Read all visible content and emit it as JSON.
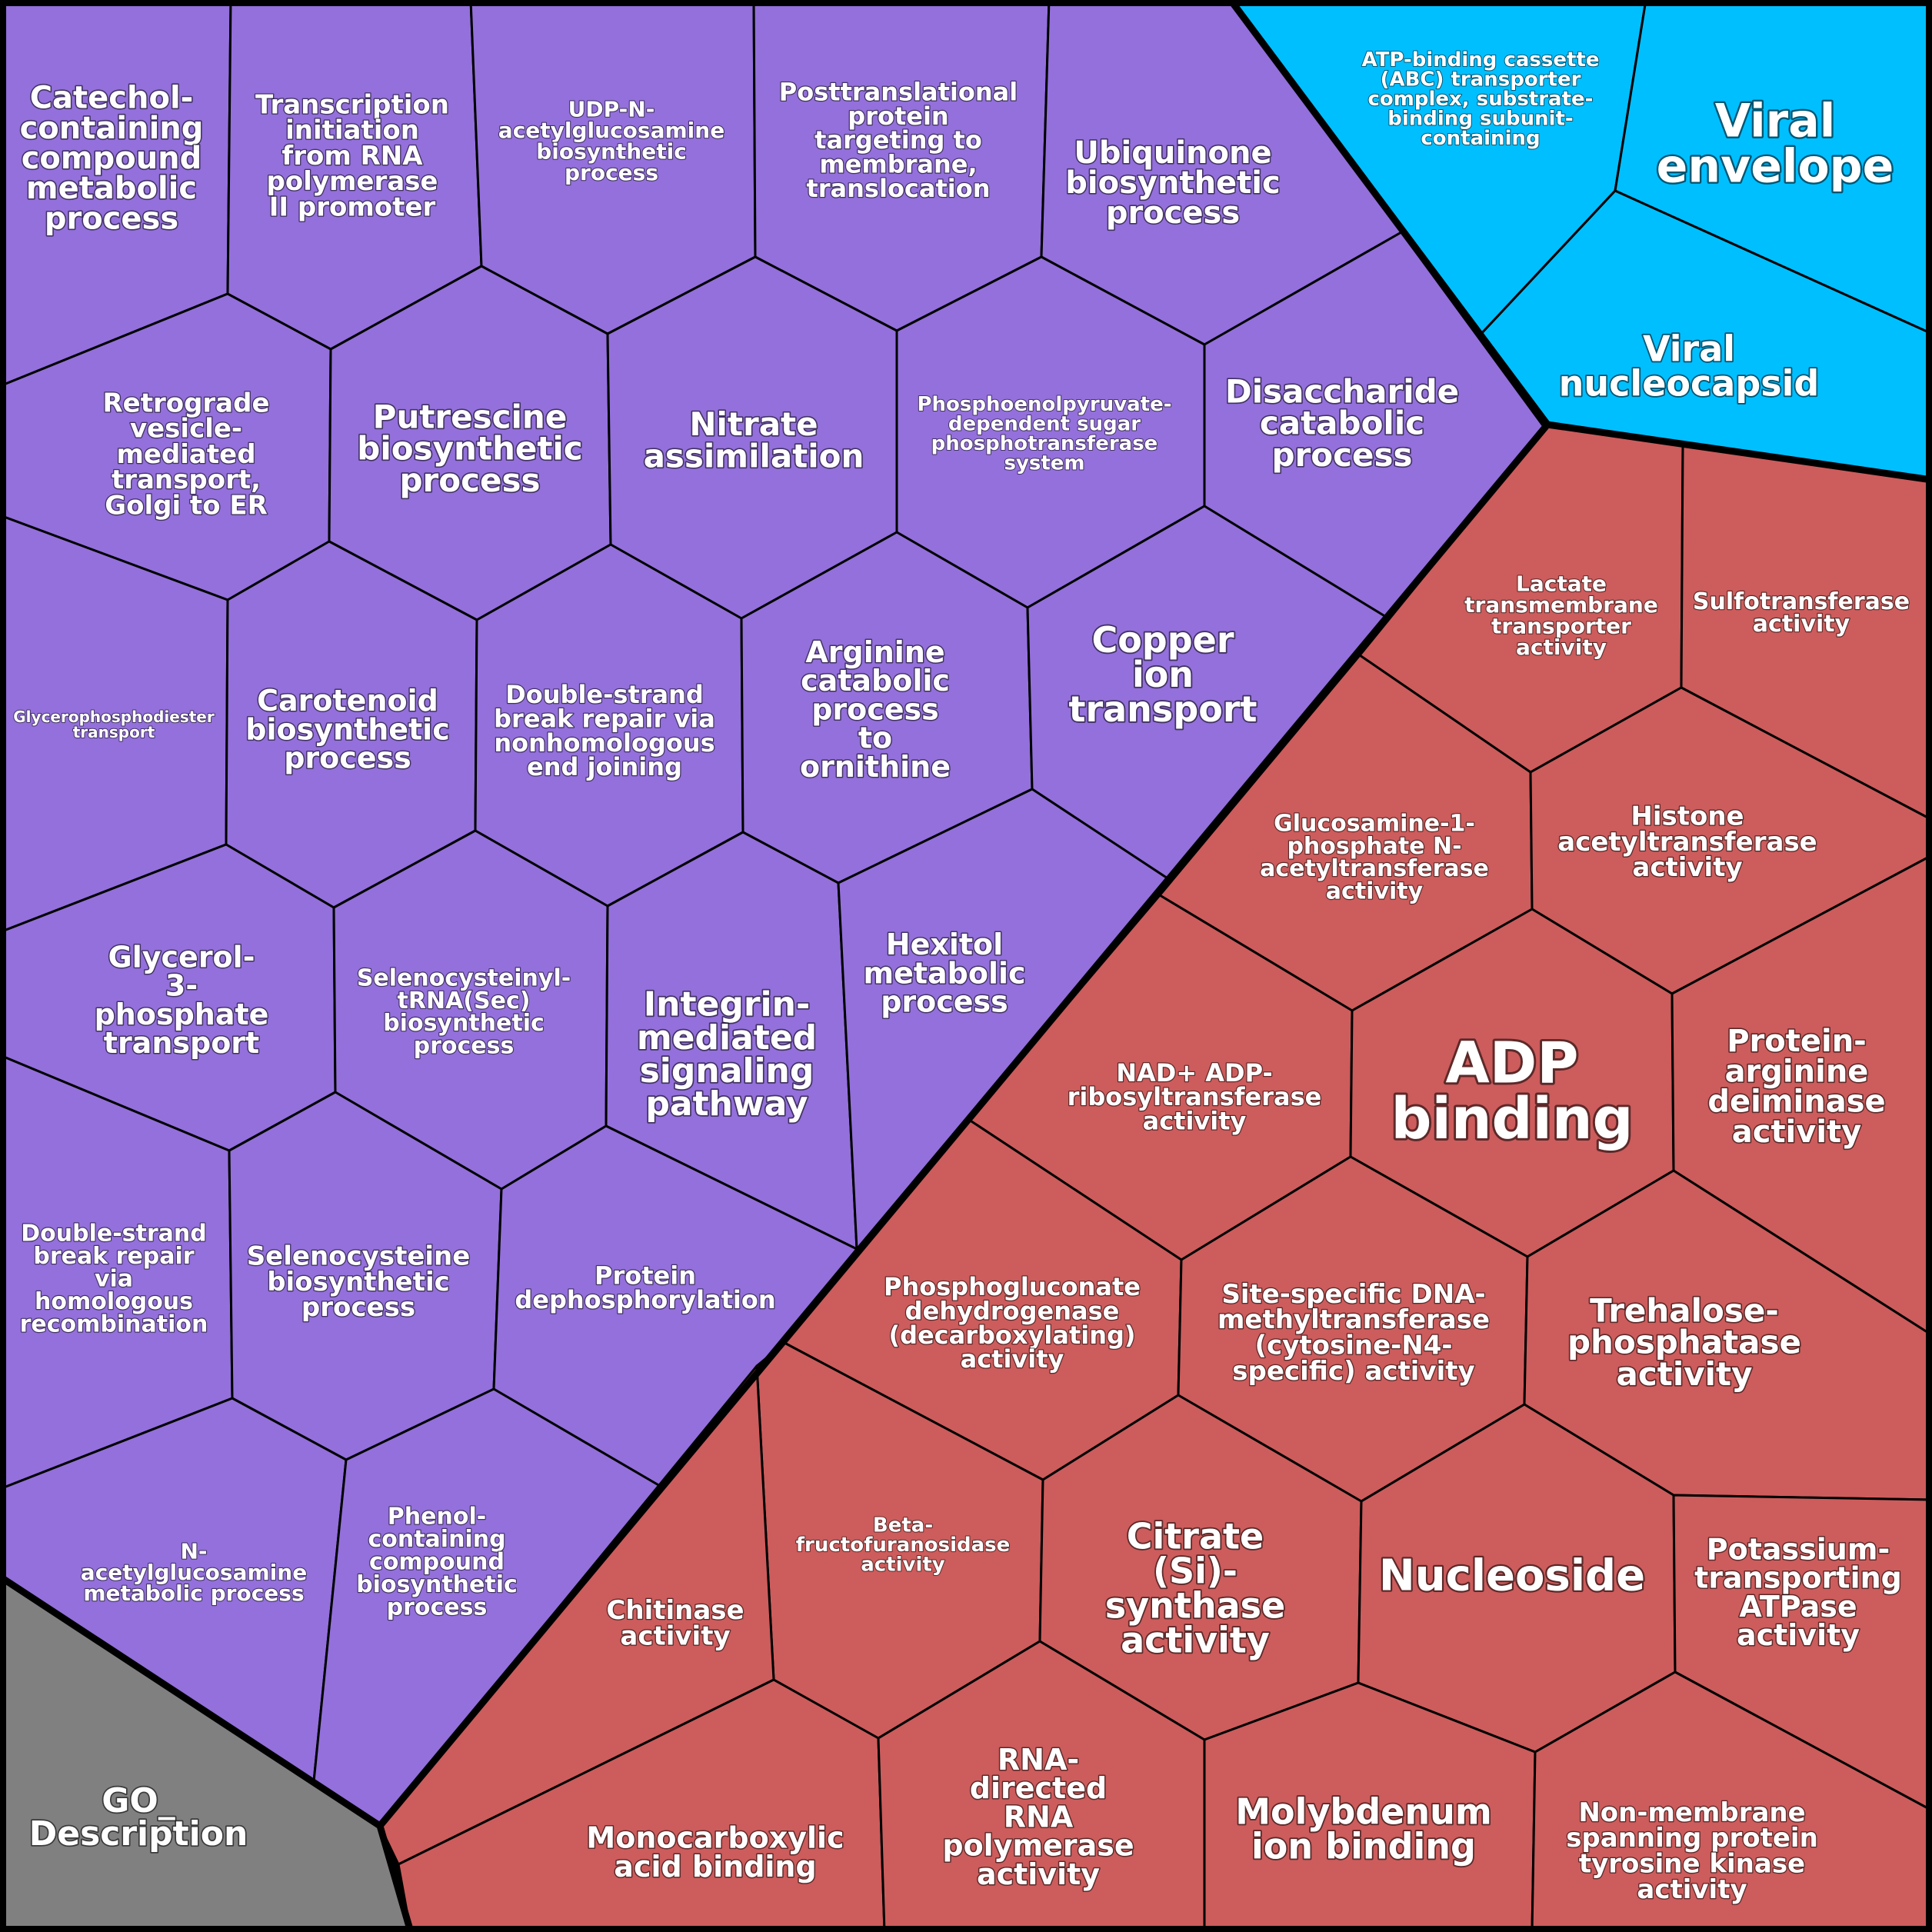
{
  "colors": {
    "biological_process": "#9370db",
    "cellular_component": "#00bfff",
    "molecular_function": "#cd5c5c",
    "legend": "#808080"
  },
  "legend_label": [
    "GO_",
    "Description"
  ],
  "cells": [
    {
      "id": "catechol",
      "group": "biological_process",
      "lines": [
        "Catechol-",
        "containing",
        "compound",
        "metabolic",
        "process"
      ]
    },
    {
      "id": "transcription-initiation",
      "group": "biological_process",
      "lines": [
        "Transcription",
        "initiation",
        "from RNA",
        "polymerase",
        "II promoter"
      ]
    },
    {
      "id": "udp-n-acetylglucosamine",
      "group": "biological_process",
      "lines": [
        "UDP-N-",
        "acetylglucosamine",
        "biosynthetic",
        "process"
      ]
    },
    {
      "id": "posttranslational",
      "group": "biological_process",
      "lines": [
        "Posttranslational",
        "protein",
        "targeting to",
        "membrane,",
        "translocation"
      ]
    },
    {
      "id": "ubiquinone",
      "group": "biological_process",
      "lines": [
        "Ubiquinone",
        "biosynthetic",
        "process"
      ]
    },
    {
      "id": "retrograde",
      "group": "biological_process",
      "lines": [
        "Retrograde",
        "vesicle-",
        "mediated",
        "transport,",
        "Golgi to ER"
      ]
    },
    {
      "id": "putrescine",
      "group": "biological_process",
      "lines": [
        "Putrescine",
        "biosynthetic",
        "process"
      ]
    },
    {
      "id": "nitrate",
      "group": "biological_process",
      "lines": [
        "Nitrate",
        "assimilation"
      ]
    },
    {
      "id": "phosphoenolpyruvate",
      "group": "biological_process",
      "lines": [
        "Phosphoenolpyruvate-",
        "dependent sugar",
        "phosphotransferase",
        "system"
      ]
    },
    {
      "id": "disaccharide",
      "group": "biological_process",
      "lines": [
        "Disaccharide",
        "catabolic",
        "process"
      ]
    },
    {
      "id": "glycerophosphodiester",
      "group": "biological_process",
      "lines": [
        "Glycerophosphodiester",
        "transport"
      ]
    },
    {
      "id": "carotenoid",
      "group": "biological_process",
      "lines": [
        "Carotenoid",
        "biosynthetic",
        "process"
      ]
    },
    {
      "id": "dsb-nhej",
      "group": "biological_process",
      "lines": [
        "Double-strand",
        "break repair via",
        "nonhomologous",
        "end joining"
      ]
    },
    {
      "id": "arginine",
      "group": "biological_process",
      "lines": [
        "Arginine",
        "catabolic",
        "process",
        "to",
        "ornithine"
      ]
    },
    {
      "id": "copper",
      "group": "biological_process",
      "lines": [
        "Copper",
        "ion",
        "transport"
      ]
    },
    {
      "id": "glycerol-3-phosphate",
      "group": "biological_process",
      "lines": [
        "Glycerol-",
        "3-",
        "phosphate",
        "transport"
      ]
    },
    {
      "id": "selenocysteinyl-trna",
      "group": "biological_process",
      "lines": [
        "Selenocysteinyl-",
        "tRNA(Sec)",
        "biosynthetic",
        "process"
      ]
    },
    {
      "id": "integrin",
      "group": "biological_process",
      "lines": [
        "Integrin-",
        "mediated",
        "signaling",
        "pathway"
      ]
    },
    {
      "id": "hexitol",
      "group": "biological_process",
      "lines": [
        "Hexitol",
        "metabolic",
        "process"
      ]
    },
    {
      "id": "dsb-hr",
      "group": "biological_process",
      "lines": [
        "Double-strand",
        "break repair",
        "via",
        "homologous",
        "recombination"
      ]
    },
    {
      "id": "selenocysteine",
      "group": "biological_process",
      "lines": [
        "Selenocysteine",
        "biosynthetic",
        "process"
      ]
    },
    {
      "id": "protein-dephosphorylation",
      "group": "biological_process",
      "lines": [
        "Protein",
        "dephosphorylation"
      ]
    },
    {
      "id": "n-acetylglucosamine",
      "group": "biological_process",
      "lines": [
        "N-",
        "acetylglucosamine",
        "metabolic process"
      ]
    },
    {
      "id": "phenol",
      "group": "biological_process",
      "lines": [
        "Phenol-",
        "containing",
        "compound",
        "biosynthetic",
        "process"
      ]
    },
    {
      "id": "abc-transporter",
      "group": "cellular_component",
      "lines": [
        "ATP-binding cassette",
        "(ABC) transporter",
        "complex, substrate-",
        "binding subunit-",
        "containing"
      ]
    },
    {
      "id": "viral-envelope",
      "group": "cellular_component",
      "lines": [
        "Viral",
        "envelope"
      ]
    },
    {
      "id": "viral-nucleocapsid",
      "group": "cellular_component",
      "lines": [
        "Viral",
        "nucleocapsid"
      ]
    },
    {
      "id": "lactate",
      "group": "molecular_function",
      "lines": [
        "Lactate",
        "transmembrane",
        "transporter",
        "activity"
      ]
    },
    {
      "id": "sulfotransferase",
      "group": "molecular_function",
      "lines": [
        "Sulfotransferase",
        "activity"
      ]
    },
    {
      "id": "glucosamine-1-phosphate",
      "group": "molecular_function",
      "lines": [
        "Glucosamine-1-",
        "phosphate N-",
        "acetyltransferase",
        "activity"
      ]
    },
    {
      "id": "histone",
      "group": "molecular_function",
      "lines": [
        "Histone",
        "acetyltransferase",
        "activity"
      ]
    },
    {
      "id": "nad-adp",
      "group": "molecular_function",
      "lines": [
        "NAD+ ADP-",
        "ribosyltransferase",
        "activity"
      ]
    },
    {
      "id": "adp-binding",
      "group": "molecular_function",
      "lines": [
        "ADP",
        "binding"
      ]
    },
    {
      "id": "protein-arginine",
      "group": "molecular_function",
      "lines": [
        "Protein-",
        "arginine",
        "deiminase",
        "activity"
      ]
    },
    {
      "id": "phosphogluconate",
      "group": "molecular_function",
      "lines": [
        "Phosphogluconate",
        "dehydrogenase",
        "(decarboxylating)",
        "activity"
      ]
    },
    {
      "id": "site-specific-dna",
      "group": "molecular_function",
      "lines": [
        "Site-specific DNA-",
        "methyltransferase",
        "(cytosine-N4-",
        "specific) activity"
      ]
    },
    {
      "id": "trehalose",
      "group": "molecular_function",
      "lines": [
        "Trehalose-",
        "phosphatase",
        "activity"
      ]
    },
    {
      "id": "beta-fructofuranosidase",
      "group": "molecular_function",
      "lines": [
        "Beta-",
        "fructofuranosidase",
        "activity"
      ]
    },
    {
      "id": "chitinase",
      "group": "molecular_function",
      "lines": [
        "Chitinase",
        "activity"
      ]
    },
    {
      "id": "citrate",
      "group": "molecular_function",
      "lines": [
        "Citrate",
        "(Si)-",
        "synthase",
        "activity"
      ]
    },
    {
      "id": "nucleoside",
      "group": "molecular_function",
      "lines": [
        "Nucleoside"
      ]
    },
    {
      "id": "potassium",
      "group": "molecular_function",
      "lines": [
        "Potassium-",
        "transporting",
        "ATPase",
        "activity"
      ]
    },
    {
      "id": "monocarboxylic",
      "group": "molecular_function",
      "lines": [
        "Monocarboxylic",
        "acid binding"
      ]
    },
    {
      "id": "rna-directed",
      "group": "molecular_function",
      "lines": [
        "RNA-",
        "directed",
        "RNA",
        "polymerase",
        "activity"
      ]
    },
    {
      "id": "molybdenum",
      "group": "molecular_function",
      "lines": [
        "Molybdenum",
        "ion binding"
      ]
    },
    {
      "id": "non-membrane",
      "group": "molecular_function",
      "lines": [
        "Non-membrane",
        "spanning protein",
        "tyrosine kinase",
        "activity"
      ]
    }
  ]
}
